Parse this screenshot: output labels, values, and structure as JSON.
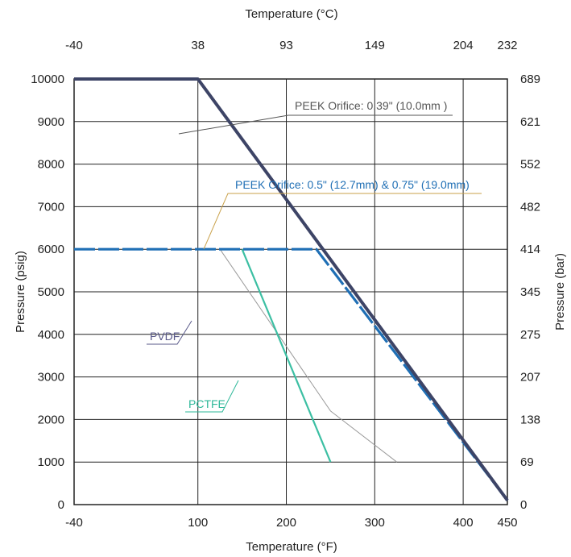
{
  "chart_data": {
    "type": "line",
    "xlabel_bottom": "Temperature (°F)",
    "xlabel_top": "Temperature (°C)",
    "ylabel_left": "Pressure (psig)",
    "ylabel_right": "Pressure (bar)",
    "xlim": [
      -40,
      450
    ],
    "ylim": [
      0,
      10000
    ],
    "grid": true,
    "x_ticks_bottom": [
      -40,
      100,
      200,
      300,
      400,
      450
    ],
    "x_ticks_top": [
      {
        "x": -40,
        "label": "-40"
      },
      {
        "x": 100,
        "label": "38"
      },
      {
        "x": 200,
        "label": "93"
      },
      {
        "x": 300,
        "label": "149"
      },
      {
        "x": 400,
        "label": "204"
      },
      {
        "x": 450,
        "label": "232"
      }
    ],
    "y_ticks_left": [
      0,
      1000,
      2000,
      3000,
      4000,
      5000,
      6000,
      7000,
      8000,
      9000,
      10000
    ],
    "y_ticks_right": [
      {
        "y": 0,
        "label": "0"
      },
      {
        "y": 1000,
        "label": "69"
      },
      {
        "y": 2000,
        "label": "138"
      },
      {
        "y": 3000,
        "label": "207"
      },
      {
        "y": 4000,
        "label": "275"
      },
      {
        "y": 5000,
        "label": "345"
      },
      {
        "y": 6000,
        "label": "414"
      },
      {
        "y": 7000,
        "label": "482"
      },
      {
        "y": 8000,
        "label": "552"
      },
      {
        "y": 9000,
        "label": "621"
      },
      {
        "y": 10000,
        "label": "689"
      }
    ],
    "series": [
      {
        "name": "PEEK Orifice: 0.39\" (10.0mm )",
        "color": "#3d4466",
        "points": [
          [
            -40,
            10000
          ],
          [
            100,
            10000
          ],
          [
            450,
            100
          ]
        ]
      },
      {
        "name": "PEEK Orifice: 0.5\" (12.7mm) & 0.75\" (19.0mm)",
        "color": "#1f6fb5",
        "points": [
          [
            -40,
            6000
          ],
          [
            234,
            6000
          ],
          [
            450,
            100
          ]
        ]
      },
      {
        "name": "PVDF",
        "color": "#9a9a9a",
        "points": [
          [
            125,
            6000
          ],
          [
            250,
            2200
          ],
          [
            325,
            1000
          ]
        ]
      },
      {
        "name": "PCTFE",
        "color": "#3cbfa3",
        "points": [
          [
            150,
            6000
          ],
          [
            250,
            1000
          ]
        ]
      }
    ],
    "annotations": [
      {
        "text": "PEEK Orifice: 0.39\" (10.0mm )",
        "color": "#555555"
      },
      {
        "text": "PEEK Orifice: 0.5\" (12.7mm) & 0.75\" (19.0mm)",
        "color": "#1f6fb5"
      },
      {
        "text": "PVDF",
        "color": "#5a5a8a"
      },
      {
        "text": "PCTFE",
        "color": "#2eb899"
      }
    ]
  }
}
